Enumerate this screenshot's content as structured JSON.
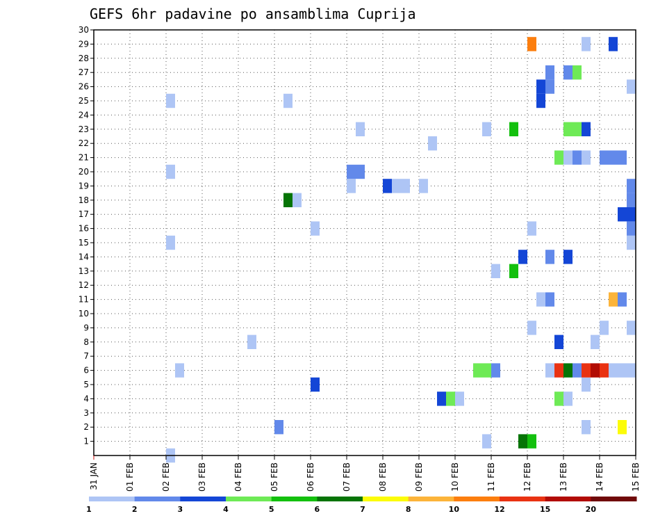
{
  "chart_data": {
    "type": "heatmap",
    "title": "GEFS 6hr padavine po ansamblima Cuprija",
    "xlabel": "",
    "ylabel": "",
    "x_ticks": [
      "31 JAN",
      "01 FEB",
      "02 FEB",
      "03 FEB",
      "04 FEB",
      "05 FEB",
      "06 FEB",
      "07 FEB",
      "08 FEB",
      "09 FEB",
      "10 FEB",
      "11 FEB",
      "12 FEB",
      "13 FEB",
      "14 FEB",
      "15 FEB"
    ],
    "y_ticks": [
      "1",
      "2",
      "3",
      "4",
      "5",
      "6",
      "7",
      "8",
      "9",
      "10",
      "11",
      "12",
      "13",
      "14",
      "15",
      "16",
      "17",
      "18",
      "19",
      "20",
      "21",
      "22",
      "23",
      "24",
      "25",
      "26",
      "27",
      "28",
      "29",
      "30"
    ],
    "xlim": [
      0,
      60
    ],
    "ylim": [
      0,
      30
    ],
    "grid": true,
    "legend_position": "bottom",
    "legend": {
      "labels": [
        "1",
        "2",
        "3",
        "4",
        "5",
        "6",
        "7",
        "8",
        "10",
        "12",
        "15",
        "20"
      ],
      "colors": [
        "#aec5f5",
        "#6289ea",
        "#1446d6",
        "#6eea56",
        "#13c00e",
        "#067406",
        "#fcfc08",
        "#fcb43a",
        "#fc7e0e",
        "#e93212",
        "#b20c05",
        "#700a0a"
      ]
    },
    "columns": "x is forecast step index (6-hour steps from 31 JAN 00z, 4 steps per day); y is ensemble member; value is 6hr precipitation in mm",
    "cells": [
      {
        "x": 8,
        "y": 0,
        "v": 1
      },
      {
        "x": 8,
        "y": 15,
        "v": 1
      },
      {
        "x": 8,
        "y": 20,
        "v": 1
      },
      {
        "x": 8,
        "y": 25,
        "v": 1
      },
      {
        "x": 9,
        "y": 6,
        "v": 1
      },
      {
        "x": 17,
        "y": 8,
        "v": 1
      },
      {
        "x": 20,
        "y": 2,
        "v": 2
      },
      {
        "x": 21,
        "y": 25,
        "v": 1
      },
      {
        "x": 21,
        "y": 18,
        "v": 6
      },
      {
        "x": 22,
        "y": 18,
        "v": 1
      },
      {
        "x": 24,
        "y": 5,
        "v": 3
      },
      {
        "x": 24,
        "y": 16,
        "v": 1
      },
      {
        "x": 28,
        "y": 19,
        "v": 1
      },
      {
        "x": 28,
        "y": 20,
        "v": 2
      },
      {
        "x": 29,
        "y": 20,
        "v": 2
      },
      {
        "x": 29,
        "y": 23,
        "v": 1
      },
      {
        "x": 32,
        "y": 19,
        "v": 3
      },
      {
        "x": 33,
        "y": 19,
        "v": 1
      },
      {
        "x": 34,
        "y": 19,
        "v": 1
      },
      {
        "x": 36,
        "y": 19,
        "v": 1
      },
      {
        "x": 37,
        "y": 22,
        "v": 1
      },
      {
        "x": 38,
        "y": 4,
        "v": 3
      },
      {
        "x": 39,
        "y": 4,
        "v": 4
      },
      {
        "x": 40,
        "y": 4,
        "v": 1
      },
      {
        "x": 42,
        "y": 6,
        "v": 4
      },
      {
        "x": 43,
        "y": 6,
        "v": 4
      },
      {
        "x": 44,
        "y": 6,
        "v": 2
      },
      {
        "x": 43,
        "y": 1,
        "v": 1
      },
      {
        "x": 43,
        "y": 23,
        "v": 1
      },
      {
        "x": 44,
        "y": 13,
        "v": 1
      },
      {
        "x": 46,
        "y": 13,
        "v": 5
      },
      {
        "x": 46,
        "y": 23,
        "v": 5
      },
      {
        "x": 47,
        "y": 14,
        "v": 3
      },
      {
        "x": 47,
        "y": 1,
        "v": 6
      },
      {
        "x": 48,
        "y": 1,
        "v": 5
      },
      {
        "x": 48,
        "y": 9,
        "v": 1
      },
      {
        "x": 48,
        "y": 16,
        "v": 1
      },
      {
        "x": 48,
        "y": 29,
        "v": 10
      },
      {
        "x": 49,
        "y": 11,
        "v": 1
      },
      {
        "x": 49,
        "y": 25,
        "v": 3
      },
      {
        "x": 49,
        "y": 26,
        "v": 3
      },
      {
        "x": 50,
        "y": 6,
        "v": 1
      },
      {
        "x": 50,
        "y": 11,
        "v": 2
      },
      {
        "x": 50,
        "y": 14,
        "v": 2
      },
      {
        "x": 50,
        "y": 26,
        "v": 2
      },
      {
        "x": 50,
        "y": 27,
        "v": 2
      },
      {
        "x": 51,
        "y": 4,
        "v": 4
      },
      {
        "x": 51,
        "y": 6,
        "v": 12
      },
      {
        "x": 51,
        "y": 8,
        "v": 3
      },
      {
        "x": 51,
        "y": 21,
        "v": 4
      },
      {
        "x": 52,
        "y": 4,
        "v": 1
      },
      {
        "x": 52,
        "y": 6,
        "v": 6
      },
      {
        "x": 52,
        "y": 14,
        "v": 3
      },
      {
        "x": 52,
        "y": 21,
        "v": 1
      },
      {
        "x": 52,
        "y": 23,
        "v": 4
      },
      {
        "x": 52,
        "y": 27,
        "v": 2
      },
      {
        "x": 53,
        "y": 6,
        "v": 2
      },
      {
        "x": 53,
        "y": 21,
        "v": 2
      },
      {
        "x": 53,
        "y": 23,
        "v": 4
      },
      {
        "x": 53,
        "y": 27,
        "v": 4
      },
      {
        "x": 54,
        "y": 5,
        "v": 1
      },
      {
        "x": 54,
        "y": 6,
        "v": 12
      },
      {
        "x": 54,
        "y": 21,
        "v": 1
      },
      {
        "x": 54,
        "y": 2,
        "v": 1
      },
      {
        "x": 54,
        "y": 23,
        "v": 3
      },
      {
        "x": 54,
        "y": 29,
        "v": 1
      },
      {
        "x": 55,
        "y": 6,
        "v": 15
      },
      {
        "x": 55,
        "y": 8,
        "v": 1
      },
      {
        "x": 56,
        "y": 6,
        "v": 12
      },
      {
        "x": 56,
        "y": 9,
        "v": 1
      },
      {
        "x": 56,
        "y": 21,
        "v": 2
      },
      {
        "x": 57,
        "y": 6,
        "v": 1
      },
      {
        "x": 57,
        "y": 11,
        "v": 8
      },
      {
        "x": 57,
        "y": 21,
        "v": 2
      },
      {
        "x": 57,
        "y": 29,
        "v": 3
      },
      {
        "x": 58,
        "y": 2,
        "v": 7
      },
      {
        "x": 58,
        "y": 6,
        "v": 1
      },
      {
        "x": 58,
        "y": 11,
        "v": 2
      },
      {
        "x": 58,
        "y": 17,
        "v": 3
      },
      {
        "x": 58,
        "y": 21,
        "v": 2
      },
      {
        "x": 59,
        "y": 6,
        "v": 1
      },
      {
        "x": 59,
        "y": 9,
        "v": 1
      },
      {
        "x": 59,
        "y": 15,
        "v": 1
      },
      {
        "x": 59,
        "y": 16,
        "v": 2
      },
      {
        "x": 59,
        "y": 17,
        "v": 3
      },
      {
        "x": 59,
        "y": 18,
        "v": 2
      },
      {
        "x": 59,
        "y": 19,
        "v": 2
      },
      {
        "x": 59,
        "y": 26,
        "v": 1
      }
    ]
  }
}
